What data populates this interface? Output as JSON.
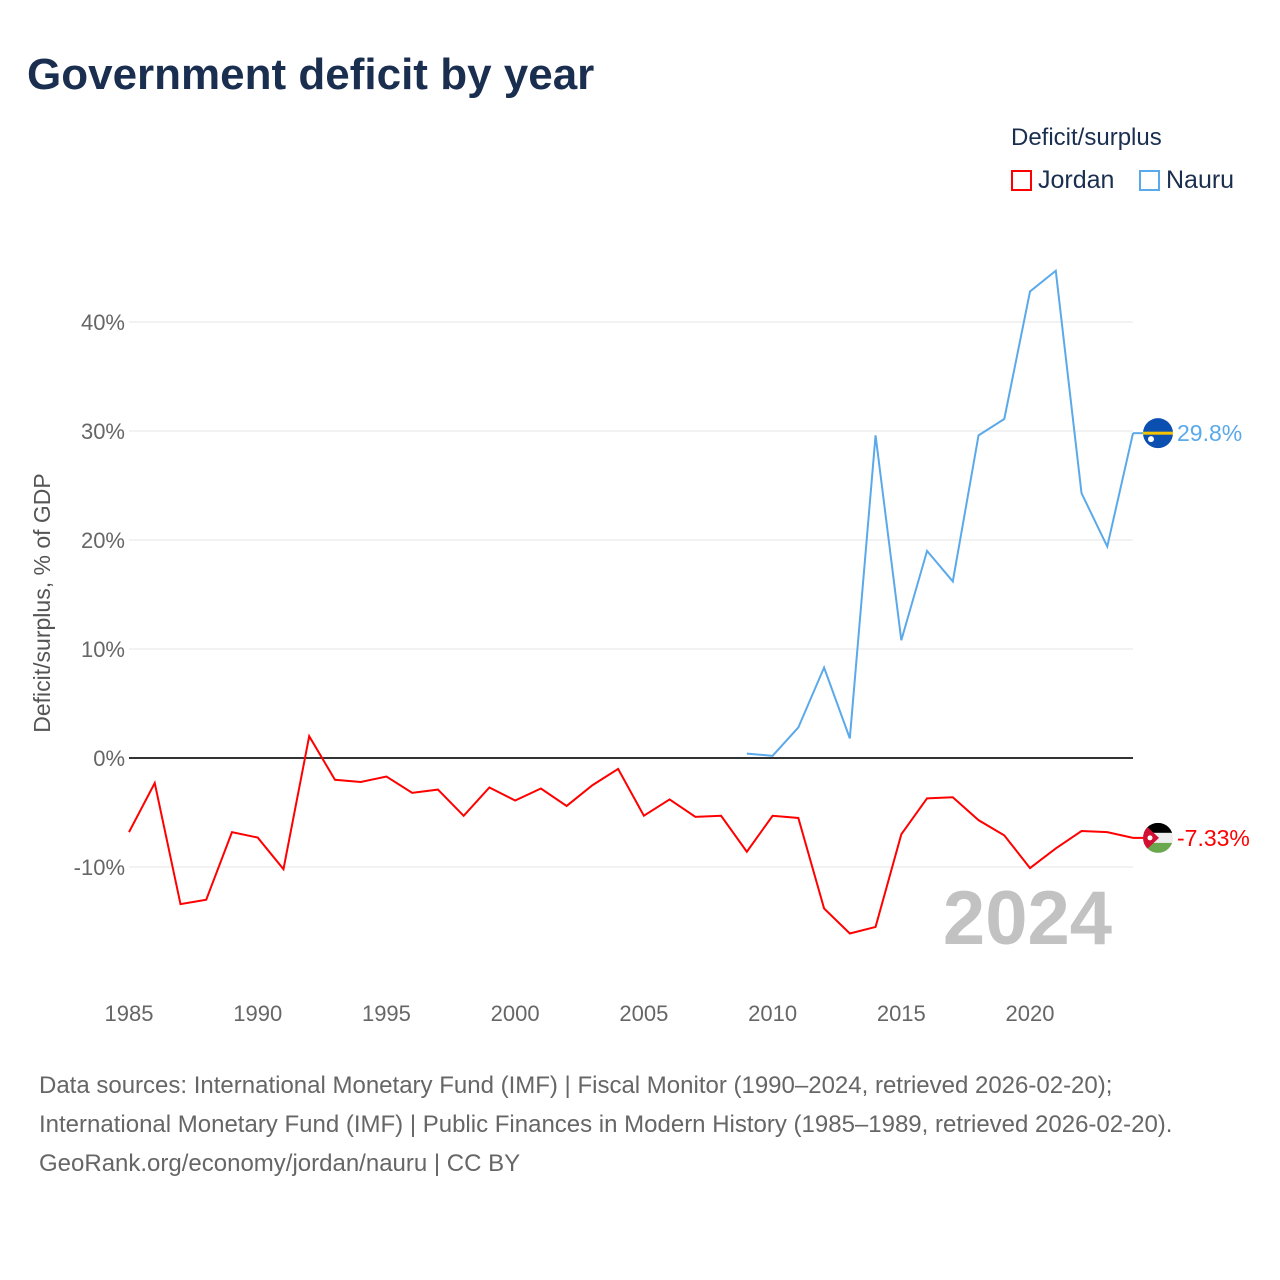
{
  "title": "Government deficit by year",
  "legend": {
    "title": "Deficit/surplus",
    "items": [
      {
        "name": "Jordan",
        "color": "#ff0000"
      },
      {
        "name": "Nauru",
        "color": "#5aa9ea"
      }
    ]
  },
  "year_label": "2024",
  "footer": {
    "sources": "Data sources: International Monetary Fund (IMF) | Fiscal Monitor (1990–2024, retrieved 2026-02-20); International Monetary Fund (IMF) | Public Finances in Modern History (1985–1989, retrieved 2026-02-20).",
    "credit": "GeoRank.org/economy/jordan/nauru | CC BY"
  },
  "chart_data": {
    "type": "line",
    "title": "Government deficit by year",
    "xlabel": "",
    "ylabel": "Deficit/surplus, % of GDP",
    "xlim": [
      1985,
      2024
    ],
    "ylim": [
      -20,
      45
    ],
    "x_ticks": [
      1985,
      1990,
      1995,
      2000,
      2005,
      2010,
      2015,
      2020
    ],
    "y_ticks": [
      -10,
      0,
      10,
      20,
      30,
      40
    ],
    "y_tick_labels": [
      "-10%",
      "0%",
      "10%",
      "20%",
      "30%",
      "40%"
    ],
    "grid": true,
    "legend_position": "top-right",
    "series": [
      {
        "name": "Jordan",
        "color": "#ff0000",
        "end_label": "-7.33%",
        "start": 1985,
        "values": [
          -6.8,
          -2.3,
          -13.4,
          -13.0,
          -6.8,
          -7.3,
          -10.2,
          2.0,
          -2.0,
          -2.2,
          -1.7,
          -3.2,
          -2.9,
          -5.3,
          -2.7,
          -3.9,
          -2.8,
          -4.4,
          -2.5,
          -1.0,
          -5.3,
          -3.8,
          -5.4,
          -5.3,
          -8.6,
          -5.3,
          -5.5,
          -13.8,
          -16.1,
          -15.5,
          -7.0,
          -3.7,
          -3.6,
          -5.7,
          -7.1,
          -10.1,
          -8.3,
          -6.7,
          -6.8,
          -7.33
        ]
      },
      {
        "name": "Nauru",
        "color": "#5aa9ea",
        "end_label": "29.8%",
        "start": 2009,
        "values": [
          0.4,
          0.2,
          2.8,
          8.3,
          1.8,
          29.6,
          10.8,
          19.0,
          16.2,
          29.6,
          31.1,
          42.8,
          44.7,
          24.3,
          19.4,
          29.8
        ]
      }
    ]
  }
}
